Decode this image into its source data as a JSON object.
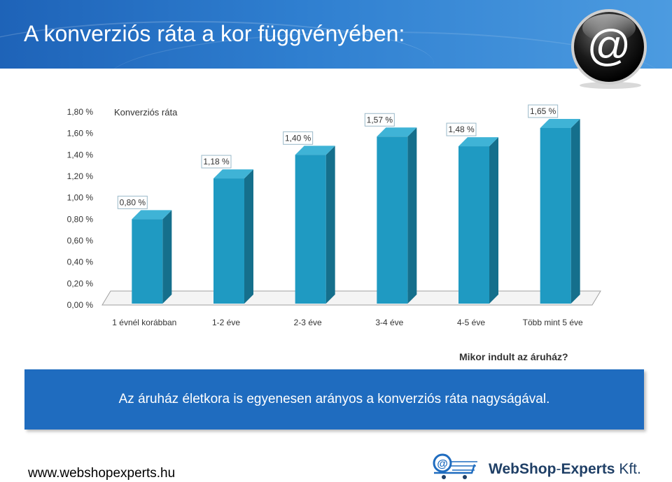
{
  "header": {
    "title": "A konverziós ráta a kor függvényében:",
    "logo_icon": "at-sign-icon"
  },
  "chart_data": {
    "type": "bar",
    "series": [
      {
        "name": "Konverziós ráta",
        "values": [
          0.8,
          1.18,
          1.4,
          1.57,
          1.48,
          1.65
        ]
      }
    ],
    "categories": [
      "1 évnél korábban",
      "1-2 éve",
      "2-3 éve",
      "3-4 éve",
      "4-5 éve",
      "Több mint 5 éve"
    ],
    "value_labels": [
      "0,80 %",
      "1,18 %",
      "1,40 %",
      "1,57 %",
      "1,48 %",
      "1,65 %"
    ],
    "y_ticks": [
      "0,00 %",
      "0,20 %",
      "0,40 %",
      "0,60 %",
      "0,80 %",
      "1,00 %",
      "1,20 %",
      "1,40 %",
      "1,60 %",
      "1,80 %"
    ],
    "ylim": [
      0,
      1.8
    ],
    "xlabel": "Mikor indult az áruház?",
    "ylabel": "",
    "grid": false,
    "bar_color": "#1f9ac2"
  },
  "banner": {
    "text": "Az áruház életkora is egyenesen arányos a konverziós ráta nagyságával."
  },
  "footer": {
    "website": "www.webshopexperts.hu",
    "brand_part1": "WebShop",
    "brand_sep": "-",
    "brand_part2": "Experts",
    "brand_part3": " Kft.",
    "brand_icon": "shopping-cart-at-icon"
  }
}
